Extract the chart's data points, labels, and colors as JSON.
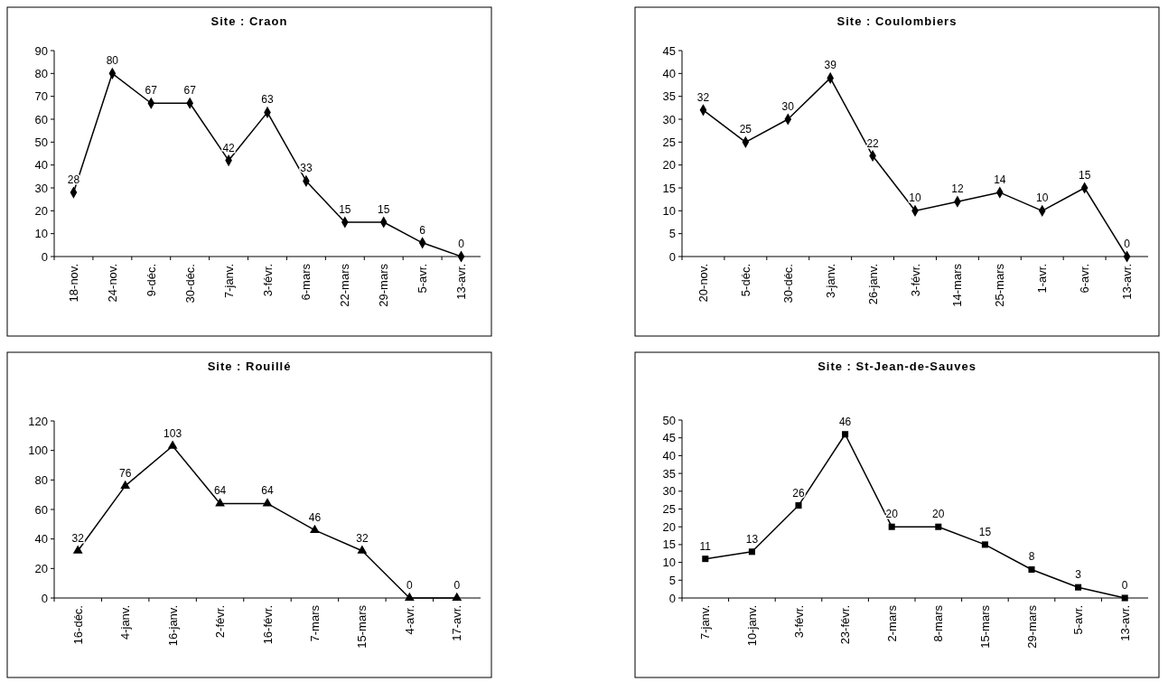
{
  "chart_data": [
    {
      "type": "line",
      "title": "Site : Craon",
      "categories": [
        "18-nov.",
        "24-nov.",
        "9-déc.",
        "30-déc.",
        "7-janv.",
        "3-févr.",
        "6-mars",
        "22-mars",
        "29-mars",
        "5-avr.",
        "13-avr."
      ],
      "series": [
        {
          "color": "#000000",
          "values": [
            28,
            80,
            67,
            67,
            42,
            63,
            33,
            15,
            15,
            6,
            0
          ]
        }
      ],
      "ylim": [
        0,
        90
      ],
      "yticks": [
        0,
        10,
        20,
        30,
        40,
        50,
        60,
        70,
        80,
        90
      ],
      "data_labels": true,
      "marker": "diamond",
      "line_style": "solid",
      "grid": false
    },
    {
      "type": "line",
      "title": "Site : Coulombiers",
      "categories": [
        "20-nov.",
        "5-déc.",
        "30-déc.",
        "3-janv.",
        "26-janv.",
        "3-févr.",
        "14-mars",
        "25-mars",
        "1-avr.",
        "6-avr.",
        "13-avr."
      ],
      "series": [
        {
          "color": "#000000",
          "values": [
            32,
            25,
            30,
            39,
            22,
            10,
            12,
            14,
            10,
            15,
            0
          ]
        }
      ],
      "ylim": [
        0,
        45
      ],
      "yticks": [
        0,
        5,
        10,
        15,
        20,
        25,
        30,
        35,
        40,
        45
      ],
      "data_labels": true,
      "marker": "diamond",
      "line_style": "solid",
      "grid": false
    },
    {
      "type": "line",
      "title": "Site : Rouillé",
      "categories": [
        "16-déc.",
        "4-janv.",
        "16-janv.",
        "2-févr.",
        "16-févr.",
        "7-mars",
        "15-mars",
        "4-avr.",
        "17-avr."
      ],
      "series": [
        {
          "color": "#000000",
          "values": [
            32,
            76,
            103,
            64,
            64,
            46,
            32,
            0,
            0
          ]
        }
      ],
      "ylim": [
        0,
        120
      ],
      "yticks": [
        0,
        20,
        40,
        60,
        80,
        100,
        120
      ],
      "data_labels": true,
      "marker": "triangle",
      "line_style": "solid",
      "grid": false
    },
    {
      "type": "line",
      "title": "Site : St-Jean-de-Sauves",
      "categories": [
        "7-janv.",
        "10-janv.",
        "3-févr.",
        "23-févr.",
        "2-mars",
        "8-mars",
        "15-mars",
        "29-mars",
        "5-avr.",
        "13-avr."
      ],
      "series": [
        {
          "color": "#000000",
          "values": [
            11,
            13,
            26,
            46,
            20,
            20,
            15,
            8,
            3,
            0
          ]
        }
      ],
      "ylim": [
        0,
        50
      ],
      "yticks": [
        0,
        5,
        10,
        15,
        20,
        25,
        30,
        35,
        40,
        45,
        50
      ],
      "data_labels": true,
      "marker": "square",
      "line_style": "solid",
      "grid": false
    }
  ]
}
